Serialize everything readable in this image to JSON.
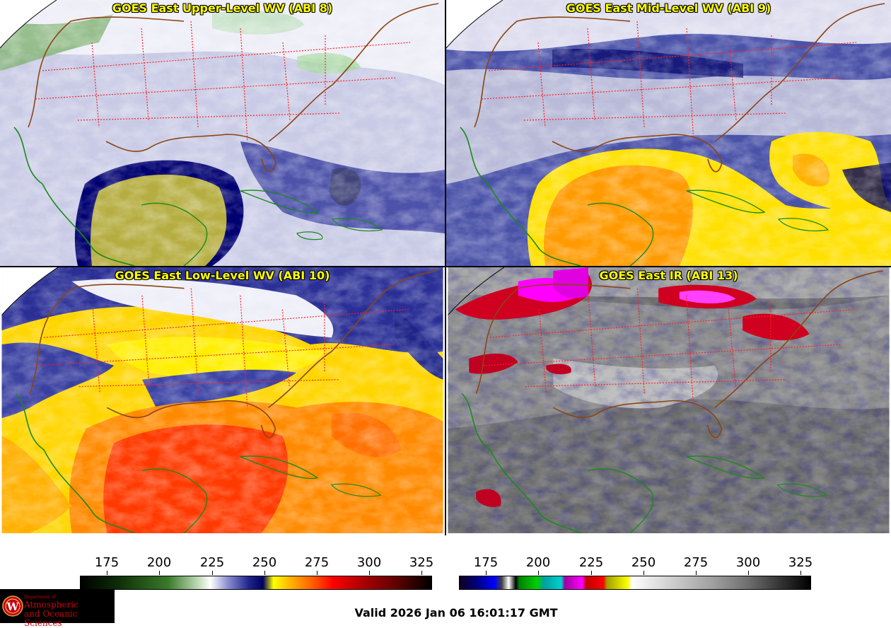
{
  "panels": [
    {
      "id": "upper",
      "title": "GOES East Upper-Level WV (ABI 8)"
    },
    {
      "id": "mid",
      "title": "GOES East Mid-Level WV (ABI 9)"
    },
    {
      "id": "low",
      "title": "GOES East Low-Level WV (ABI 10)"
    },
    {
      "id": "ir",
      "title": "GOES East IR (ABI 13)"
    }
  ],
  "colorbars": {
    "wv": {
      "ticks": [
        "175",
        "200",
        "225",
        "250",
        "275",
        "300",
        "325"
      ]
    },
    "ir": {
      "ticks": [
        "175",
        "200",
        "225",
        "250",
        "275",
        "300",
        "325"
      ]
    }
  },
  "valid_time": "Valid 2026 Jan 06 16:01:17 GMT",
  "logo": {
    "department": "Department of",
    "name_line1": "Atmospheric",
    "name_line2": "and Oceanic Sciences",
    "seal_letter": "W"
  },
  "colors": {
    "title": "#ffff00",
    "state_lines": "#ff2020",
    "coast": "#1a8a1a",
    "country": "#8b4513"
  }
}
